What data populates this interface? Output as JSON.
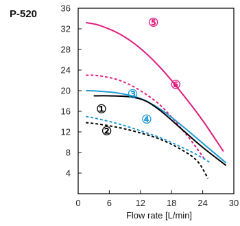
{
  "model_label": "P-520",
  "chart_data": {
    "type": "line",
    "title": "",
    "xlabel": "Flow rate [L/min]",
    "ylabel": "",
    "xlim": [
      0,
      30
    ],
    "ylim": [
      0,
      36
    ],
    "xticks": [
      0,
      6,
      12,
      18,
      24,
      30
    ],
    "yticks": [
      4,
      8,
      12,
      16,
      20,
      24,
      28,
      32,
      36
    ],
    "ytick_labels": [
      "4",
      "8",
      "12",
      "16",
      "20",
      "24",
      "28",
      "32",
      "36"
    ],
    "xtick_labels": [
      "0",
      "6",
      "12",
      "18",
      "24",
      "30"
    ],
    "grid": false,
    "series": [
      {
        "name": "⑤",
        "color": "#e0197d",
        "style": "solid",
        "x": [
          1.5,
          4,
          8,
          12,
          16,
          20,
          24,
          28
        ],
        "y": [
          33.2,
          32.7,
          31.0,
          28.2,
          24.3,
          19.5,
          14.2,
          8.2
        ]
      },
      {
        "name": "⑥",
        "color": "#e0197d",
        "style": "dashed",
        "x": [
          1.5,
          4,
          8,
          12,
          16,
          20,
          22,
          24.5
        ],
        "y": [
          23.0,
          22.9,
          22.0,
          20.0,
          17.0,
          12.5,
          10.0,
          6.5
        ]
      },
      {
        "name": "③",
        "color": "#1d9ad6",
        "style": "solid",
        "x": [
          1.5,
          4,
          8,
          12,
          16,
          20,
          24,
          28.5
        ],
        "y": [
          20.0,
          19.9,
          19.5,
          18.5,
          16.3,
          13.2,
          9.8,
          6.0
        ]
      },
      {
        "name": "①",
        "color": "#000000",
        "style": "solid",
        "x": [
          3,
          6,
          10,
          13,
          16,
          20,
          24,
          28.5
        ],
        "y": [
          19.0,
          19.0,
          18.8,
          18.0,
          16.0,
          12.5,
          9.0,
          5.5
        ]
      },
      {
        "name": "④",
        "color": "#1d9ad6",
        "style": "dashed",
        "x": [
          1.5,
          4,
          8,
          12,
          16,
          20,
          23,
          25.5
        ],
        "y": [
          15.0,
          14.5,
          13.5,
          12.2,
          10.8,
          9.0,
          7.5,
          6.0
        ]
      },
      {
        "name": "②",
        "color": "#000000",
        "style": "dashed",
        "x": [
          1.5,
          4,
          8,
          12,
          16,
          20,
          23,
          25
        ],
        "y": [
          13.8,
          13.5,
          12.8,
          11.8,
          10.5,
          8.5,
          6.3,
          3.0
        ]
      }
    ],
    "annotations": [
      {
        "text": "⑤",
        "color": "#e0197d",
        "x": 14.5,
        "y": 33.3
      },
      {
        "text": "⑥",
        "color": "#e0197d",
        "x": 18.8,
        "y": 21.2
      },
      {
        "text": "③",
        "color": "#1d9ad6",
        "x": 10.5,
        "y": 19.4
      },
      {
        "text": "①",
        "color": "#000000",
        "x": 4.5,
        "y": 16.5
      },
      {
        "text": "④",
        "color": "#1d9ad6",
        "x": 13.2,
        "y": 14.5
      },
      {
        "text": "②",
        "color": "#000000",
        "x": 5.5,
        "y": 12.2
      }
    ]
  }
}
